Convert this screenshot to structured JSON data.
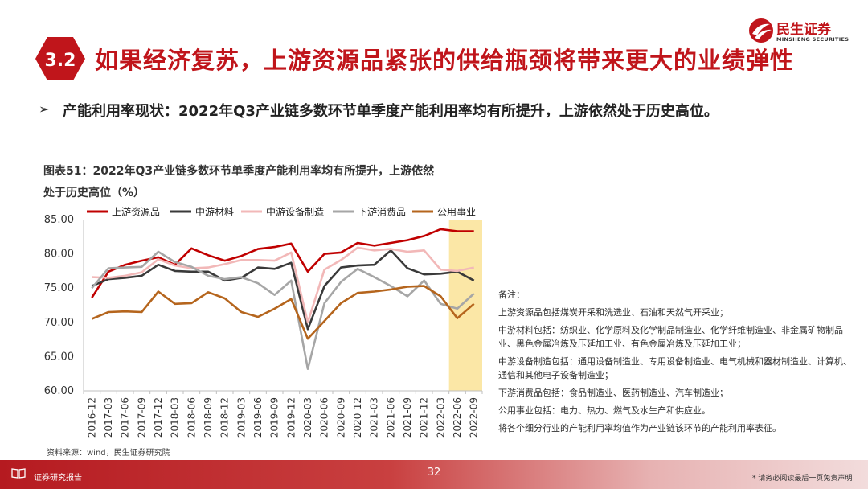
{
  "header": {
    "section_number": "3.2",
    "title": "如果经济复苏，上游资源品紧张的供给瓶颈将带来更大的业绩弹性",
    "logo_cn": "民生证券",
    "logo_en": "MINSHENG SECURITIES"
  },
  "bullet": {
    "arrow": "➢",
    "text": "产能利用率现状：2022年Q3产业链多数环节单季度产能利用率均有所提升，上游依然处于历史高位。"
  },
  "chart_title": {
    "line1": "图表51：2022年Q3产业链多数环节单季度产能利用率均有所提升，上游依然",
    "line2": "处于历史高位（%）"
  },
  "chart_data": {
    "type": "line",
    "x": [
      "2016-12",
      "2017-03",
      "2017-06",
      "2017-09",
      "2017-12",
      "2018-03",
      "2018-06",
      "2018-09",
      "2018-12",
      "2019-03",
      "2019-06",
      "2019-09",
      "2019-12",
      "2020-03",
      "2020-06",
      "2020-09",
      "2020-12",
      "2021-03",
      "2021-06",
      "2021-09",
      "2021-12",
      "2022-03",
      "2022-06",
      "2022-09"
    ],
    "ylim": [
      60,
      85
    ],
    "yticks": [
      "60.00",
      "65.00",
      "70.00",
      "75.00",
      "80.00",
      "85.00"
    ],
    "legend_position": "top",
    "highlight_range": [
      "2022-06",
      "2022-09"
    ],
    "highlight_color": "#fbe7a6",
    "series": [
      {
        "name": "上游资源品",
        "color": "#c00000",
        "values": [
          73.6,
          77.4,
          78.4,
          79.0,
          79.5,
          78.4,
          80.8,
          79.8,
          79.0,
          79.7,
          80.7,
          81.0,
          81.5,
          77.4,
          80.0,
          80.2,
          81.6,
          81.2,
          81.6,
          82.0,
          82.6,
          83.6,
          83.3,
          83.3
        ]
      },
      {
        "name": "中游材料",
        "color": "#3a3a3a",
        "values": [
          75.3,
          76.3,
          76.5,
          76.8,
          78.4,
          77.5,
          77.4,
          77.4,
          76.1,
          76.5,
          78.0,
          77.8,
          78.7,
          69.0,
          75.3,
          78.0,
          78.3,
          78.4,
          80.5,
          77.9,
          77.0,
          77.1,
          77.4,
          76.1
        ]
      },
      {
        "name": "中游设备制造",
        "color": "#f2b8b8",
        "values": [
          76.6,
          76.5,
          76.8,
          77.3,
          79.2,
          78.3,
          77.9,
          78.0,
          78.5,
          79.1,
          79.1,
          79.0,
          80.2,
          70.0,
          77.7,
          79.1,
          80.9,
          80.5,
          80.7,
          80.3,
          80.5,
          77.7,
          77.5,
          78.0
        ]
      },
      {
        "name": "下游消费品",
        "color": "#a6a6a6",
        "values": [
          75.0,
          77.9,
          78.0,
          78.1,
          80.3,
          78.8,
          78.1,
          76.8,
          76.3,
          76.6,
          75.7,
          74.0,
          76.1,
          63.2,
          72.8,
          75.9,
          77.8,
          76.6,
          75.3,
          73.8,
          76.1,
          72.7,
          72.0,
          74.2
        ]
      },
      {
        "name": "公用事业",
        "color": "#b5651d",
        "values": [
          70.5,
          71.5,
          71.6,
          71.5,
          74.5,
          72.7,
          72.8,
          74.4,
          73.5,
          71.5,
          70.8,
          72.0,
          73.4,
          67.6,
          70.2,
          72.8,
          74.3,
          74.5,
          74.8,
          75.2,
          75.3,
          73.8,
          70.6,
          72.7
        ]
      }
    ]
  },
  "notes": {
    "lines": [
      "备注：",
      "上游资源品包括煤炭开采和洗选业、石油和天然气开采业；",
      "中游材料包括：纺织业、化学原料及化学制品制造业、化学纤维制造业、非金属矿物制品业、黑色金属冶炼及压延加工业、有色金属冶炼及压延加工业；",
      "中游设备制造包括：通用设备制造业、专用设备制造业、电气机械和器材制造业、计算机、通信和其他电子设备制造业；",
      "下游消费品包括：食品制造业、医药制造业、汽车制造业；",
      "公用事业包括：电力、热力、燃气及水生产和供应业。",
      "将各个细分行业的产能利用率均值作为产业链该环节的产能利用率表征。"
    ]
  },
  "source": "资料来源：wind，民生证券研究院",
  "footer": {
    "icon": "book-icon",
    "label": "证券研究报告",
    "page_number": "32",
    "disclaimer": "* 请务必阅读最后一页免责声明"
  },
  "colors": {
    "brand_red": "#c0151b",
    "axis_text": "#333333"
  }
}
